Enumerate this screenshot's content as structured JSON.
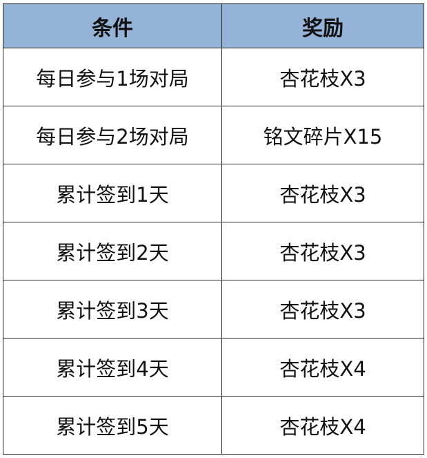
{
  "table": {
    "headers": [
      "条件",
      "奖励"
    ],
    "rows": [
      [
        "每日参与1场对局",
        "杏花枝X3"
      ],
      [
        "每日参与2场对局",
        "铭文碎片X15"
      ],
      [
        "累计签到1天",
        "杏花枝X3"
      ],
      [
        "累计签到2天",
        "杏花枝X3"
      ],
      [
        "累计签到3天",
        "杏花枝X3"
      ],
      [
        "累计签到4天",
        "杏花枝X4"
      ],
      [
        "累计签到5天",
        "杏花枝X4"
      ]
    ],
    "header_color": "#95b3d7"
  }
}
